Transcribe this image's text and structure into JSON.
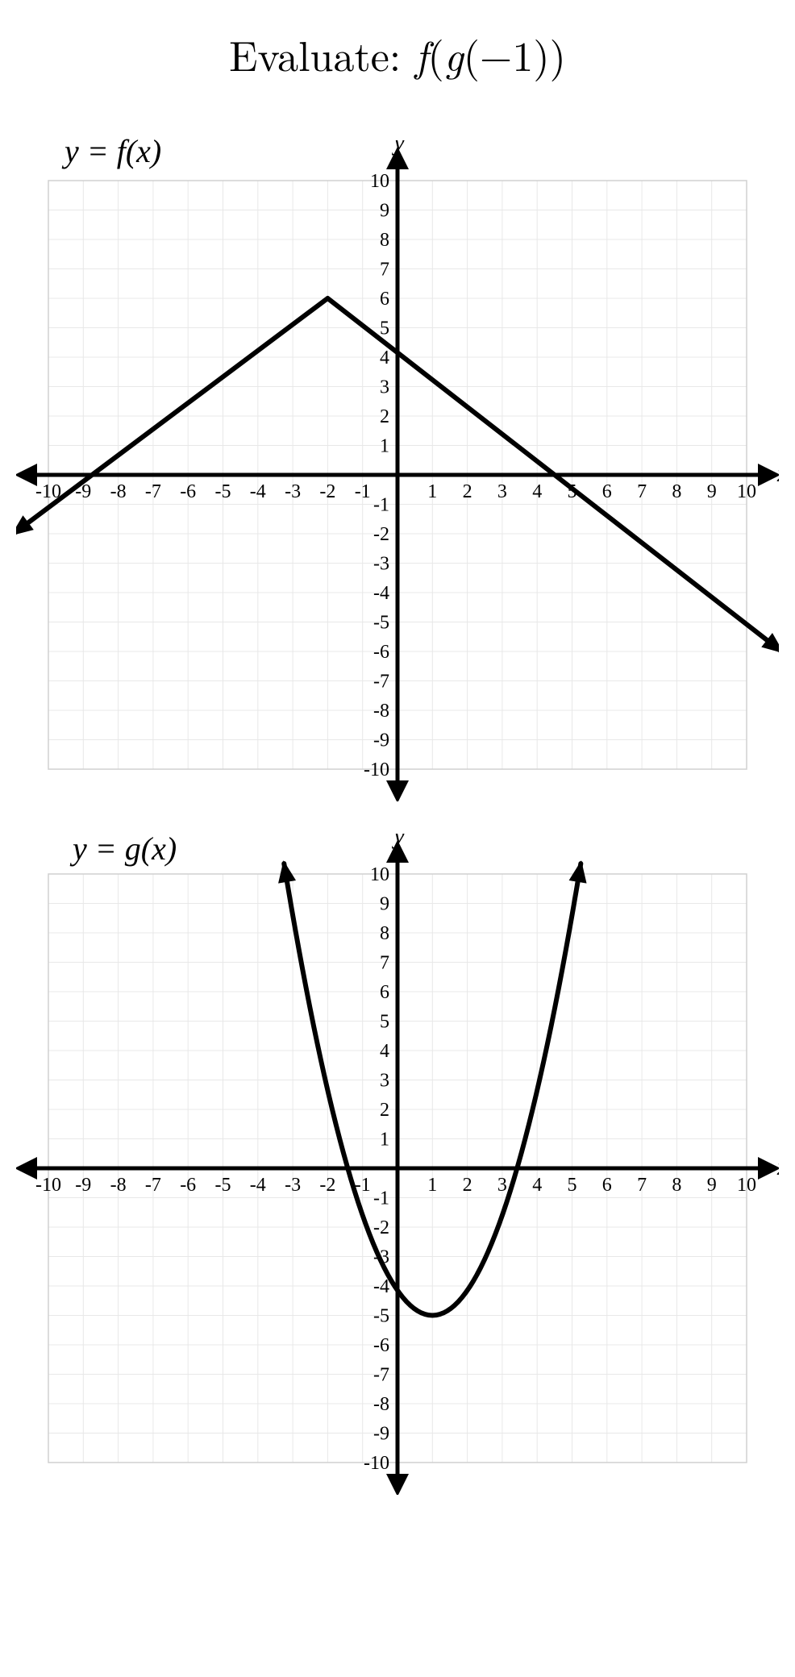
{
  "title_prefix": "Evaluate: ",
  "title_expr_html": "f(g(−1))",
  "chart_common": {
    "xmin": -10,
    "xmax": 10,
    "ymin": -10,
    "ymax": 10,
    "xticks": [
      -10,
      -9,
      -8,
      -7,
      -6,
      -5,
      -4,
      -3,
      -2,
      -1,
      1,
      2,
      3,
      4,
      5,
      6,
      7,
      8,
      9,
      10
    ],
    "yticks": [
      -10,
      -9,
      -8,
      -7,
      -6,
      -5,
      -4,
      -3,
      -2,
      -1,
      1,
      2,
      3,
      4,
      5,
      6,
      7,
      8,
      9,
      10
    ],
    "grid_step": 1,
    "grid_color": "#e8e8e8",
    "axis_color": "#000000",
    "background_color": "#ffffff",
    "tick_fontsize_pt": 18,
    "axis_label_fontsize_pt": 22,
    "x_axis_label": "x",
    "y_axis_label": "y",
    "curve_stroke_width": 6
  },
  "chart_f": {
    "label": "y = f(x)",
    "type": "piecewise-linear",
    "points": [
      [
        -11,
        -2
      ],
      [
        -2,
        6
      ],
      [
        11,
        -6
      ]
    ],
    "end_arrows": true
  },
  "chart_g": {
    "label": "y = g(x)",
    "type": "parabola",
    "vertex": [
      1,
      -5
    ],
    "a": 0.85,
    "x_draw_min": -3.25,
    "x_draw_max": 5.25,
    "end_arrows": true
  }
}
